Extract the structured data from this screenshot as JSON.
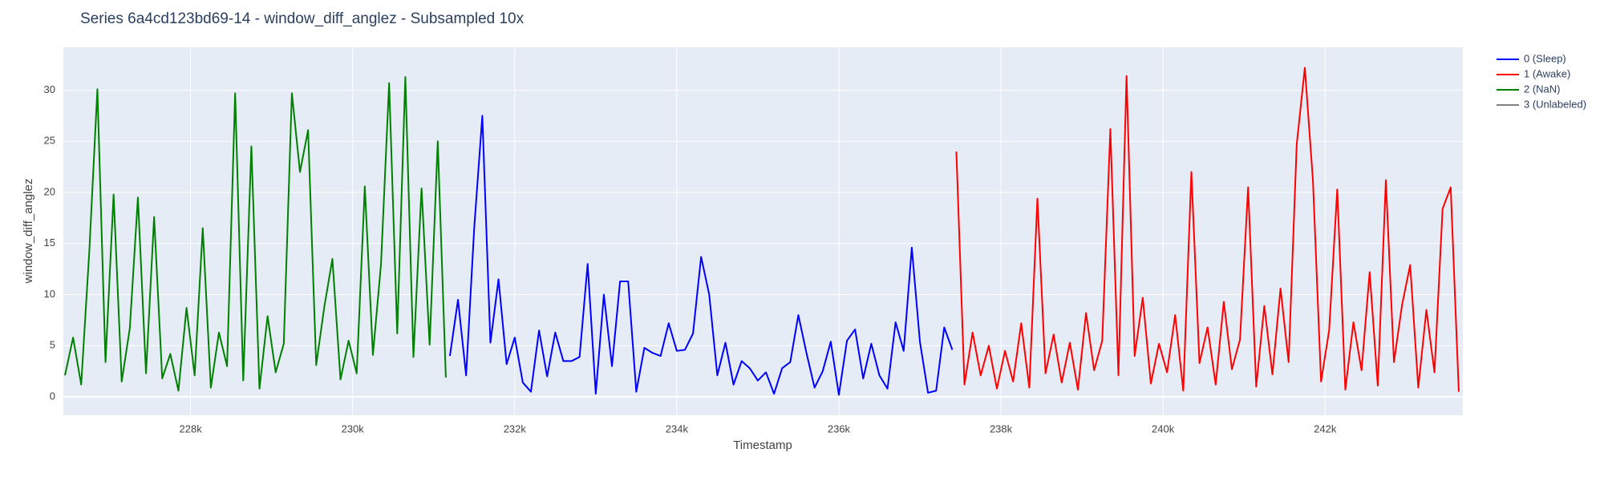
{
  "chart_data": {
    "type": "line",
    "title": "Series 6a4cd123bd69-14 - window_diff_anglez - Subsampled 10x",
    "x_label": "Timestamp",
    "y_label": "window_diff_anglez",
    "xlim": [
      226430,
      243700
    ],
    "ylim": [
      -1.8,
      34.2
    ],
    "xticks": [
      {
        "value": 228000,
        "label": "228k"
      },
      {
        "value": 230000,
        "label": "230k"
      },
      {
        "value": 232000,
        "label": "232k"
      },
      {
        "value": 234000,
        "label": "234k"
      },
      {
        "value": 236000,
        "label": "236k"
      },
      {
        "value": 238000,
        "label": "238k"
      },
      {
        "value": 240000,
        "label": "240k"
      },
      {
        "value": 242000,
        "label": "242k"
      }
    ],
    "yticks": [
      0,
      5,
      10,
      15,
      20,
      25,
      30
    ],
    "grid": true,
    "legend_position": "right",
    "series": [
      {
        "name": "0 (Sleep)",
        "color": "#0000ff",
        "x": [
          231200,
          231300,
          231400,
          231500,
          231600,
          231700,
          231800,
          231900,
          232000,
          232100,
          232200,
          232300,
          232400,
          232500,
          232600,
          232700,
          232800,
          232900,
          233000,
          233100,
          233200,
          233300,
          233400,
          233500,
          233600,
          233700,
          233800,
          233900,
          234000,
          234100,
          234200,
          234300,
          234400,
          234500,
          234600,
          234700,
          234800,
          234900,
          235000,
          235100,
          235200,
          235300,
          235400,
          235500,
          235600,
          235700,
          235800,
          235900,
          236000,
          236100,
          236200,
          236300,
          236400,
          236500,
          236600,
          236700,
          236800,
          236900,
          237000,
          237100,
          237200,
          237300,
          237400
        ],
        "values": [
          4.0,
          9.5,
          2.1,
          16.5,
          27.5,
          5.3,
          11.5,
          3.2,
          5.8,
          1.4,
          0.5,
          6.5,
          2.0,
          6.3,
          3.5,
          3.5,
          3.9,
          13.0,
          0.3,
          10.0,
          3.0,
          11.3,
          11.3,
          0.5,
          4.8,
          4.3,
          4.0,
          7.2,
          4.5,
          4.6,
          6.2,
          13.7,
          10.0,
          2.1,
          5.3,
          1.2,
          3.5,
          2.8,
          1.6,
          2.4,
          0.3,
          2.8,
          3.4,
          8.0,
          4.3,
          0.9,
          2.5,
          5.4,
          0.2,
          5.5,
          6.6,
          1.8,
          5.2,
          2.1,
          0.8,
          7.3,
          4.5,
          14.6,
          5.4,
          0.4,
          0.6,
          6.8,
          4.6
        ]
      },
      {
        "name": "1 (Awake)",
        "color": "#ff0000",
        "x": [
          237450,
          237550,
          237650,
          237750,
          237850,
          237950,
          238050,
          238150,
          238250,
          238350,
          238450,
          238550,
          238650,
          238750,
          238850,
          238950,
          239050,
          239150,
          239250,
          239350,
          239450,
          239550,
          239650,
          239750,
          239850,
          239950,
          240050,
          240150,
          240250,
          240350,
          240450,
          240550,
          240650,
          240750,
          240850,
          240950,
          241050,
          241150,
          241250,
          241350,
          241450,
          241550,
          241650,
          241750,
          241850,
          241950,
          242050,
          242150,
          242250,
          242350,
          242450,
          242550,
          242650,
          242750,
          242850,
          242950,
          243050,
          243150,
          243250,
          243350,
          243450,
          243550,
          243650
        ],
        "values": [
          24.0,
          1.2,
          6.3,
          2.1,
          5.0,
          0.8,
          4.5,
          1.5,
          7.2,
          0.9,
          19.4,
          2.3,
          6.1,
          1.4,
          5.3,
          0.7,
          8.2,
          2.6,
          5.5,
          26.2,
          2.1,
          31.4,
          4.0,
          9.7,
          1.3,
          5.2,
          2.4,
          8.0,
          0.6,
          22.0,
          3.3,
          6.8,
          1.2,
          9.3,
          2.7,
          5.6,
          20.5,
          1.0,
          8.9,
          2.2,
          10.6,
          3.4,
          24.7,
          32.2,
          21.2,
          1.5,
          6.5,
          20.3,
          0.7,
          7.3,
          2.6,
          12.2,
          1.1,
          21.2,
          3.4,
          9.0,
          12.9,
          0.9,
          8.5,
          2.4,
          18.4,
          20.5,
          0.5
        ]
      },
      {
        "name": "2 (NaN)",
        "color": "#008000",
        "x": [
          226450,
          226550,
          226650,
          226750,
          226850,
          226950,
          227050,
          227150,
          227250,
          227350,
          227450,
          227550,
          227650,
          227750,
          227850,
          227950,
          228050,
          228150,
          228250,
          228350,
          228450,
          228550,
          228650,
          228750,
          228850,
          228950,
          229050,
          229150,
          229250,
          229350,
          229450,
          229550,
          229650,
          229750,
          229850,
          229950,
          230050,
          230150,
          230250,
          230350,
          230450,
          230550,
          230650,
          230750,
          230850,
          230950,
          231050,
          231150
        ],
        "values": [
          2.1,
          5.8,
          1.2,
          14.2,
          30.1,
          3.4,
          19.8,
          1.5,
          6.7,
          19.5,
          2.3,
          17.6,
          1.8,
          4.2,
          0.6,
          8.7,
          2.1,
          16.5,
          0.9,
          6.3,
          3.0,
          29.7,
          1.6,
          24.5,
          0.8,
          7.9,
          2.4,
          5.2,
          29.7,
          22.0,
          26.1,
          3.1,
          8.8,
          13.5,
          1.7,
          5.5,
          2.3,
          20.6,
          4.1,
          13.0,
          30.7,
          6.2,
          31.3,
          3.9,
          20.4,
          5.1,
          25.0,
          1.9
        ]
      },
      {
        "name": "3 (Unlabeled)",
        "color": "#808080",
        "x": [],
        "values": []
      }
    ]
  }
}
